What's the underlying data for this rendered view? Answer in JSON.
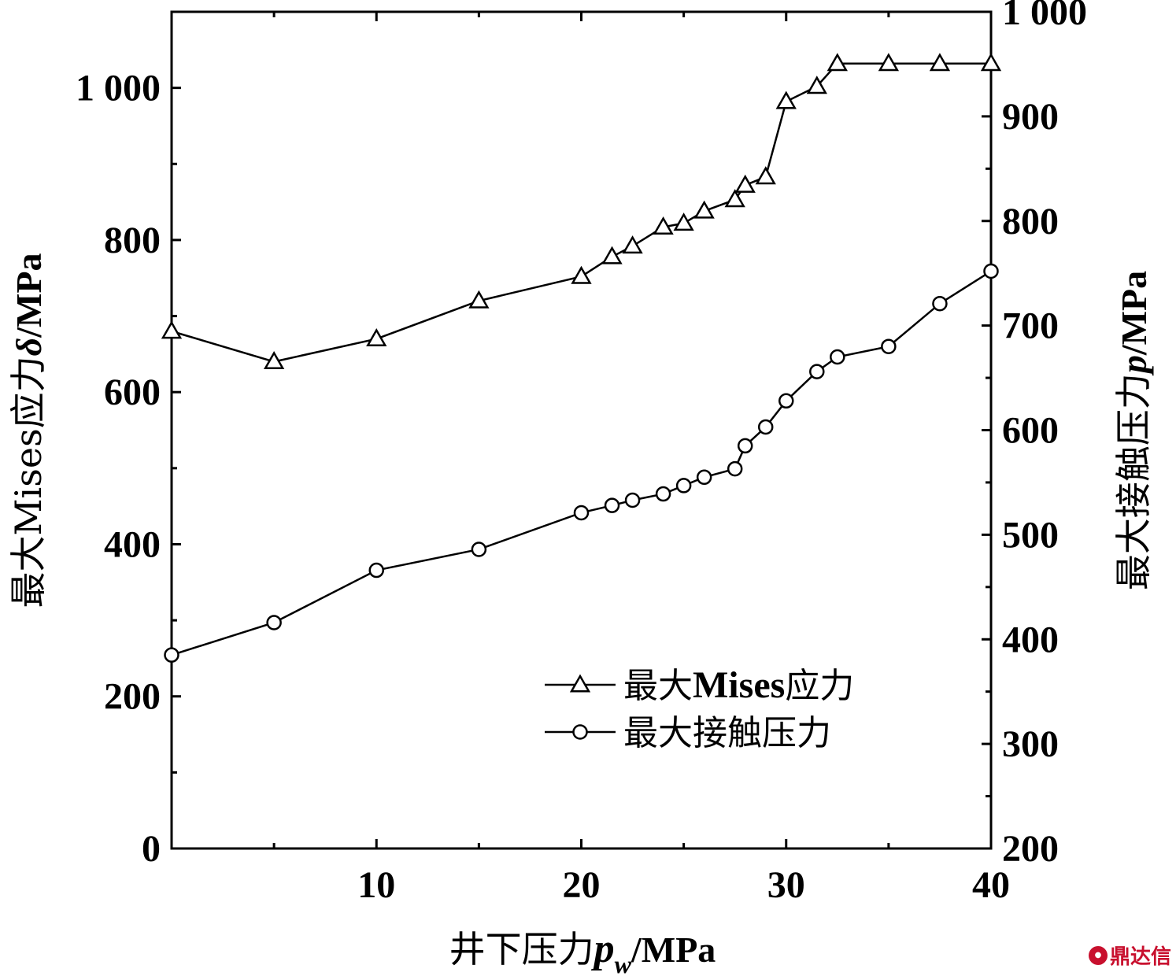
{
  "chart_data": {
    "type": "line",
    "xlabel": {
      "prefix": "井下压力",
      "sym": "p",
      "sub": "w",
      "unit": "/MPa"
    },
    "ylabel_left": {
      "prefix": "最大Mises应力",
      "sym": "δ",
      "unit": "/MPa"
    },
    "ylabel_right": {
      "prefix": "最大接触压力",
      "sym": "p",
      "unit": "/MPa"
    },
    "xlim": [
      0,
      40
    ],
    "ylim_left": [
      0,
      1100
    ],
    "ylim_right": [
      200,
      1000
    ],
    "x_ticks": [
      10,
      20,
      30,
      40
    ],
    "y_left_ticks": [
      0,
      200,
      400,
      600,
      800,
      1000
    ],
    "y_left_tick_labels": [
      "0",
      "200",
      "400",
      "600",
      "800",
      "1 000"
    ],
    "y_right_ticks": [
      200,
      300,
      400,
      500,
      600,
      700,
      800,
      900,
      1000
    ],
    "y_right_tick_labels": [
      "200",
      "300",
      "400",
      "500",
      "600",
      "700",
      "800",
      "900",
      "1 000"
    ],
    "grid": false,
    "legend_position": "bottom-right",
    "series": [
      {
        "name": "最大Mises应力",
        "axis": "left",
        "marker": "triangle",
        "x": [
          0,
          5,
          10,
          15,
          20,
          21.5,
          22.5,
          24,
          25,
          26,
          27.5,
          28,
          29,
          30,
          31.5,
          32.5,
          35,
          37.5,
          40
        ],
        "values": [
          680,
          640,
          670,
          720,
          752,
          778,
          792,
          817,
          822,
          838,
          853,
          872,
          883,
          982,
          1002,
          1032,
          1032,
          1032,
          1032
        ]
      },
      {
        "name": "最大接触压力",
        "axis": "right",
        "marker": "circle",
        "x": [
          0,
          5,
          10,
          15,
          20,
          21.5,
          22.5,
          24,
          25,
          26,
          27.5,
          28,
          29,
          30,
          31.5,
          32.5,
          35,
          37.5,
          40
        ],
        "values": [
          385,
          416,
          466,
          486,
          521,
          528,
          533,
          539,
          547,
          555,
          563,
          585,
          603,
          628,
          656,
          670,
          680,
          721,
          752
        ]
      }
    ]
  },
  "watermark": "鼎达信"
}
